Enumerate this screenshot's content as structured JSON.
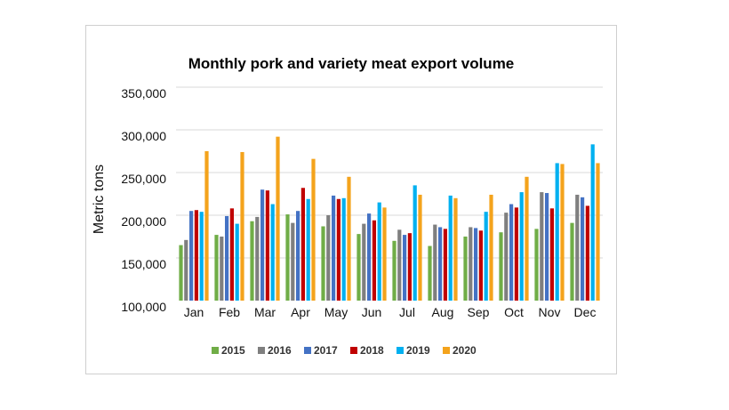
{
  "chart_data": {
    "type": "bar",
    "title": "Monthly pork and variety meat export volume",
    "ylabel": "Metric tons",
    "xlabel": "",
    "ylim": [
      100000,
      350000
    ],
    "yticks": [
      100000,
      150000,
      200000,
      250000,
      300000,
      350000
    ],
    "ytick_labels": [
      "100,000",
      "150,000",
      "200,000",
      "250,000",
      "300,000",
      "350,000"
    ],
    "grid": true,
    "legend_position": "bottom",
    "categories": [
      "Jan",
      "Feb",
      "Mar",
      "Apr",
      "May",
      "Jun",
      "Jul",
      "Aug",
      "Sep",
      "Oct",
      "Nov",
      "Dec"
    ],
    "series": [
      {
        "name": "2015",
        "color": "#70ad47",
        "values": [
          165000,
          177000,
          193000,
          201000,
          187000,
          178000,
          170000,
          164000,
          175000,
          180000,
          184000,
          191000
        ]
      },
      {
        "name": "2016",
        "color": "#7f7f7f",
        "values": [
          171000,
          175000,
          198000,
          191000,
          200000,
          190000,
          183000,
          189000,
          186000,
          203000,
          227000,
          224000
        ]
      },
      {
        "name": "2017",
        "color": "#4472c4",
        "values": [
          205000,
          199000,
          230000,
          205000,
          223000,
          202000,
          177000,
          186000,
          185000,
          213000,
          226000,
          221000
        ]
      },
      {
        "name": "2018",
        "color": "#c00000",
        "values": [
          206000,
          208000,
          229000,
          232000,
          219000,
          194000,
          179000,
          184000,
          182000,
          209000,
          208000,
          211000
        ]
      },
      {
        "name": "2019",
        "color": "#00b0f0",
        "values": [
          204000,
          190000,
          213000,
          219000,
          220000,
          215000,
          235000,
          223000,
          204000,
          227000,
          261000,
          283000
        ]
      },
      {
        "name": "2020",
        "color": "#f4a31c",
        "values": [
          275000,
          274000,
          292000,
          266000,
          245000,
          209000,
          224000,
          220000,
          224000,
          245000,
          260000,
          261000
        ]
      }
    ]
  }
}
